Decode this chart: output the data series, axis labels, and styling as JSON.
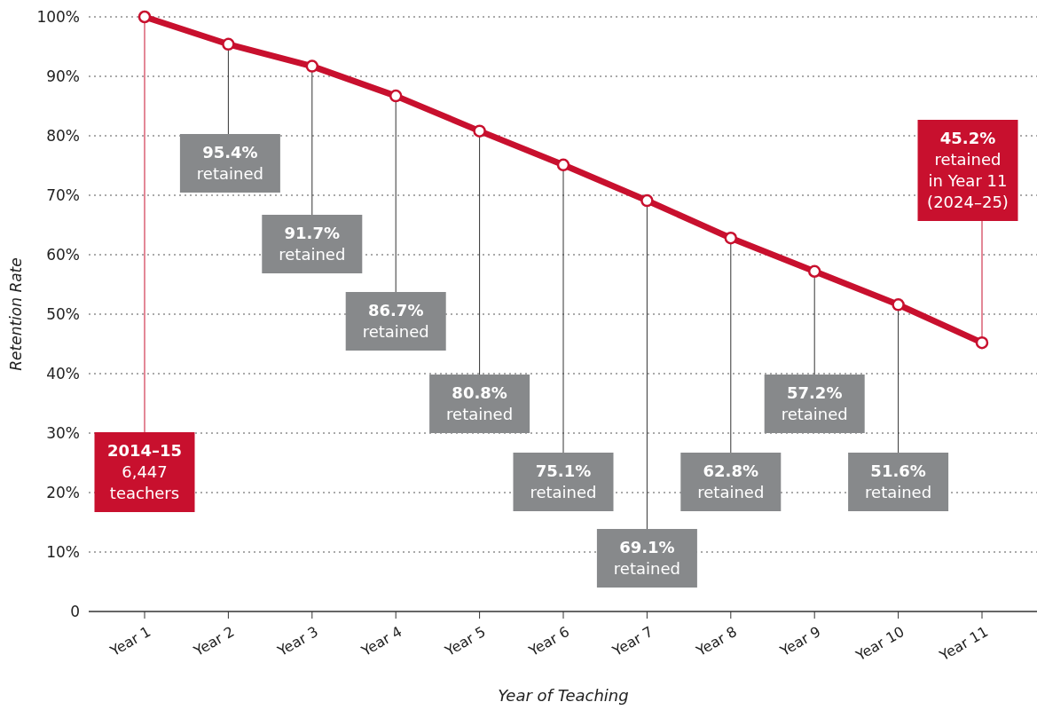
{
  "chart_data": {
    "type": "line",
    "xlabel": "Year of Teaching",
    "ylabel": "Retention Rate",
    "categories": [
      "Year 1",
      "Year 2",
      "Year 3",
      "Year 4",
      "Year 5",
      "Year 6",
      "Year 7",
      "Year 8",
      "Year 9",
      "Year 10",
      "Year 11"
    ],
    "series": [
      {
        "color": "#c8102e",
        "values": [
          100,
          95.4,
          91.7,
          86.7,
          80.8,
          75.1,
          69.1,
          62.8,
          57.2,
          51.6,
          45.2
        ]
      }
    ],
    "ylim": [
      0,
      100
    ],
    "yticks": [
      0,
      {
        "value": 10,
        "label": "10%"
      },
      {
        "value": 20,
        "label": "20%"
      },
      {
        "value": 30,
        "label": "30%"
      },
      {
        "value": 40,
        "label": "40%"
      },
      {
        "value": 50,
        "label": "50%"
      },
      {
        "value": 60,
        "label": "60%"
      },
      {
        "value": 70,
        "label": "70%"
      },
      {
        "value": 80,
        "label": "80%"
      },
      {
        "value": 90,
        "label": "90%"
      },
      {
        "value": 100,
        "label": "100%"
      }
    ],
    "grid": "y",
    "marker": "circle",
    "line_style": "solid",
    "annotations": [
      {
        "text": "2014–15\n6,447\nteachers",
        "x": "Year 1",
        "y": 100
      },
      {
        "text": "95.4%\nretained",
        "x": "Year 2",
        "y": 95.4
      },
      {
        "text": "91.7%\nretained",
        "x": "Year 3",
        "y": 91.7
      },
      {
        "text": "86.7%\nretained",
        "x": "Year 4",
        "y": 86.7
      },
      {
        "text": "80.8%\nretained",
        "x": "Year 5",
        "y": 80.8
      },
      {
        "text": "75.1%\nretained",
        "x": "Year 6",
        "y": 75.1
      },
      {
        "text": "69.1%\nretained",
        "x": "Year 7",
        "y": 69.1
      },
      {
        "text": "62.8%\nretained",
        "x": "Year 8",
        "y": 62.8
      },
      {
        "text": "57.2%\nretained",
        "x": "Year 9",
        "y": 57.2
      },
      {
        "text": "51.6%\nretained",
        "x": "Year 10",
        "y": 51.6
      },
      {
        "text": "45.2%\nretained\nin Year 11\n(2024–25)",
        "x": "Year 11",
        "y": 45.2
      }
    ]
  }
}
